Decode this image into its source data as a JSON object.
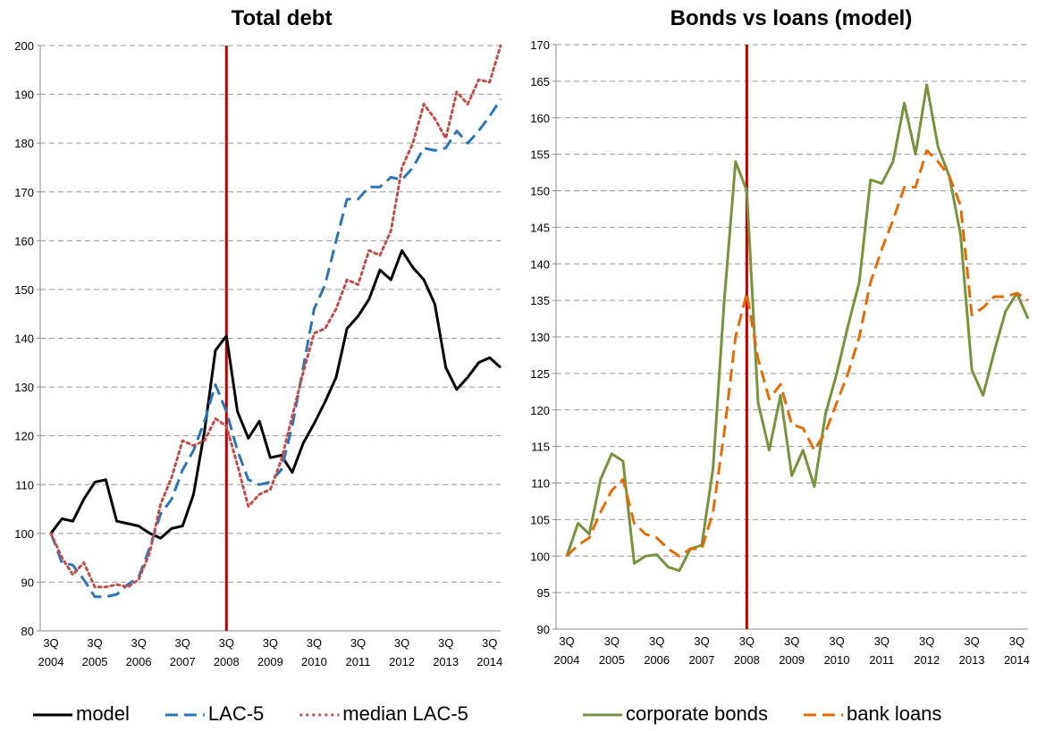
{
  "chart_data": [
    {
      "type": "line",
      "title": "Total debt",
      "categories": [
        "3Q 2004",
        null,
        null,
        null,
        "3Q 2005",
        null,
        null,
        null,
        "3Q 2006",
        null,
        null,
        null,
        "3Q 2007",
        null,
        null,
        null,
        "3Q 2008",
        null,
        null,
        null,
        "3Q 2009",
        null,
        null,
        null,
        "3Q 2010",
        null,
        null,
        null,
        "3Q 2011",
        null,
        null,
        null,
        "3Q 2012",
        null,
        null,
        null,
        "3Q 2013",
        null,
        null,
        null,
        "3Q 2014",
        null
      ],
      "ylim": [
        80,
        200
      ],
      "yticks": [
        80,
        90,
        100,
        110,
        120,
        130,
        140,
        150,
        160,
        170,
        180,
        190,
        200
      ],
      "grid": true,
      "vline_at": "3Q 2008",
      "vline_color": "#c00000",
      "series": [
        {
          "name": "model",
          "color": "#000000",
          "dash": "solid",
          "values": [
            100,
            103,
            102.5,
            107,
            110.5,
            111,
            102.5,
            102,
            101.5,
            100,
            99,
            101,
            101.5,
            108,
            121,
            137.5,
            140.5,
            125,
            119.5,
            123,
            115.5,
            116,
            112.5,
            118.5,
            122.5,
            127,
            132,
            142,
            144.5,
            148,
            154,
            152,
            158,
            154.5,
            152,
            147,
            134,
            129.5,
            132,
            135,
            136,
            134
          ]
        },
        {
          "name": "LAC-5",
          "color": "#2e75b6",
          "dash": "dashed",
          "values": [
            100,
            94,
            93.5,
            90.5,
            87,
            87,
            87.5,
            89.5,
            91,
            97,
            104,
            107,
            113,
            117,
            123,
            130.5,
            125,
            117,
            111,
            110,
            110.5,
            113,
            122,
            134,
            146,
            151,
            160,
            168.5,
            168.5,
            171,
            171,
            173,
            172.5,
            175,
            179,
            178.5,
            179,
            182.5,
            180,
            182.5,
            185.5,
            189
          ]
        },
        {
          "name": "median LAC-5",
          "color": "#c0504d",
          "dash": "dotted",
          "values": [
            100,
            95,
            91.5,
            94,
            89,
            89,
            89.5,
            89,
            90.5,
            96,
            106,
            111.5,
            119,
            118,
            119,
            123.5,
            122,
            114,
            105.5,
            108,
            109,
            115,
            124,
            133,
            141,
            142,
            146,
            152,
            151,
            158,
            157,
            162,
            175,
            180,
            188,
            185,
            181,
            190.5,
            188,
            193,
            192.5,
            200
          ]
        }
      ]
    },
    {
      "type": "line",
      "title": "Bonds vs loans (model)",
      "categories": [
        "3Q 2004",
        null,
        null,
        null,
        "3Q 2005",
        null,
        null,
        null,
        "3Q 2006",
        null,
        null,
        null,
        "3Q 2007",
        null,
        null,
        null,
        "3Q 2008",
        null,
        null,
        null,
        "3Q 2009",
        null,
        null,
        null,
        "3Q 2010",
        null,
        null,
        null,
        "3Q 2011",
        null,
        null,
        null,
        "3Q 2012",
        null,
        null,
        null,
        "3Q 2013",
        null,
        null,
        null,
        "3Q 2014",
        null
      ],
      "ylim": [
        90,
        170
      ],
      "yticks": [
        90,
        95,
        100,
        105,
        110,
        115,
        120,
        125,
        130,
        135,
        140,
        145,
        150,
        155,
        160,
        165,
        170
      ],
      "grid": true,
      "vline_at": "3Q 2008",
      "vline_color": "#c00000",
      "series": [
        {
          "name": "corporate bonds",
          "color": "#77933c",
          "dash": "solid",
          "values": [
            100,
            104.5,
            103,
            110.5,
            114,
            113,
            99,
            100,
            100.2,
            98.5,
            98,
            101,
            101.5,
            112,
            135,
            154,
            150,
            121,
            114.5,
            122,
            111,
            114.5,
            109.5,
            119.5,
            125,
            131.5,
            137.5,
            151.5,
            151,
            154,
            162,
            155,
            164.5,
            156,
            152,
            144,
            125.5,
            122,
            128,
            133.5,
            136,
            132.5
          ]
        },
        {
          "name": "bank loans",
          "color": "#e36c09",
          "dash": "dashed",
          "values": [
            100,
            101.5,
            102.5,
            106,
            109,
            110.5,
            104.5,
            103,
            102.5,
            101,
            100,
            101,
            101,
            106,
            117,
            130,
            136,
            127,
            121.5,
            123.5,
            118,
            117.5,
            114.5,
            117,
            121,
            125,
            130,
            137.5,
            142,
            146,
            150.5,
            150.5,
            155.5,
            154,
            152,
            148,
            133,
            134,
            135.5,
            135.5,
            136,
            135
          ]
        }
      ]
    }
  ]
}
